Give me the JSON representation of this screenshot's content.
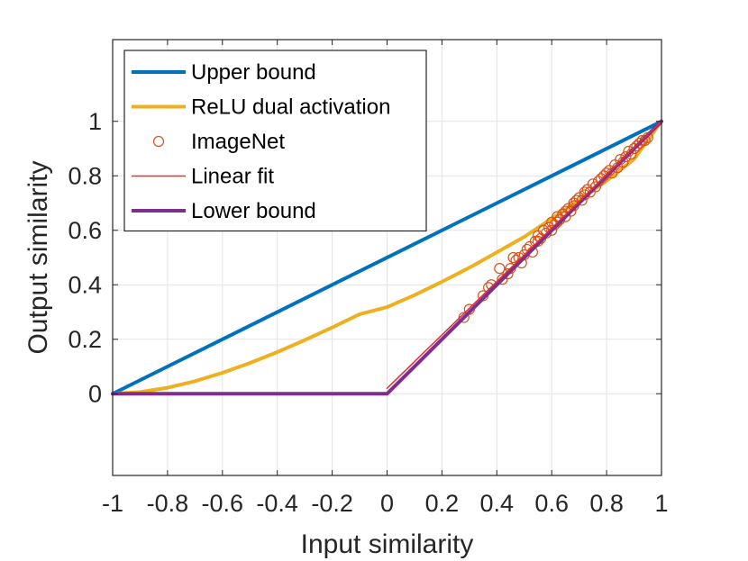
{
  "chart_data": {
    "type": "line",
    "title": "",
    "xlabel": "Input similarity",
    "ylabel": "Output similarity",
    "xlim": [
      -1,
      1
    ],
    "ylim": [
      -0.3,
      1.3
    ],
    "x_ticks": [
      -1,
      -0.8,
      -0.6,
      -0.4,
      -0.2,
      0,
      0.2,
      0.4,
      0.6,
      0.8,
      1
    ],
    "x_tick_labels": [
      "-1",
      "-0.8",
      "-0.6",
      "-0.4",
      "-0.2",
      "0",
      "0.2",
      "0.4",
      "0.6",
      "0.8",
      "1"
    ],
    "y_ticks": [
      0,
      0.2,
      0.4,
      0.6,
      0.8,
      1
    ],
    "y_tick_labels": [
      "0",
      "0.2",
      "0.4",
      "0.6",
      "0.8",
      "1"
    ],
    "grid": true,
    "legend_position": "top-left",
    "series": [
      {
        "name": "Upper bound",
        "kind": "line",
        "color": "#0072BD",
        "x": [
          -1,
          1
        ],
        "y": [
          0,
          1
        ]
      },
      {
        "name": "ReLU dual activation",
        "kind": "line",
        "color": "#EDB120",
        "x": [
          -1,
          -0.9,
          -0.8,
          -0.7,
          -0.6,
          -0.5,
          -0.4,
          -0.3,
          -0.2,
          -0.1,
          0,
          0.1,
          0.2,
          0.3,
          0.4,
          0.5,
          0.6,
          0.7,
          0.8,
          0.9,
          1
        ],
        "y": [
          0,
          0.006,
          0.022,
          0.046,
          0.077,
          0.113,
          0.153,
          0.197,
          0.243,
          0.292,
          0.318,
          0.362,
          0.411,
          0.463,
          0.519,
          0.576,
          0.643,
          0.71,
          0.782,
          0.861,
          1
        ]
      },
      {
        "name": "ImageNet",
        "kind": "scatter",
        "color": "#D95319",
        "x": [
          0.28,
          0.3,
          0.35,
          0.37,
          0.38,
          0.41,
          0.42,
          0.44,
          0.45,
          0.46,
          0.47,
          0.48,
          0.49,
          0.5,
          0.51,
          0.52,
          0.53,
          0.54,
          0.55,
          0.55,
          0.56,
          0.57,
          0.58,
          0.59,
          0.6,
          0.6,
          0.61,
          0.62,
          0.62,
          0.63,
          0.64,
          0.65,
          0.65,
          0.66,
          0.67,
          0.68,
          0.68,
          0.69,
          0.7,
          0.71,
          0.72,
          0.72,
          0.73,
          0.74,
          0.75,
          0.76,
          0.77,
          0.78,
          0.79,
          0.8,
          0.81,
          0.82,
          0.83,
          0.84,
          0.85,
          0.86,
          0.87,
          0.88,
          0.89,
          0.9,
          0.91,
          0.92,
          0.93,
          0.94,
          0.95
        ],
        "y": [
          0.28,
          0.31,
          0.36,
          0.39,
          0.4,
          0.46,
          0.42,
          0.44,
          0.46,
          0.5,
          0.49,
          0.5,
          0.48,
          0.51,
          0.53,
          0.54,
          0.52,
          0.56,
          0.56,
          0.58,
          0.57,
          0.6,
          0.59,
          0.61,
          0.6,
          0.63,
          0.62,
          0.65,
          0.63,
          0.64,
          0.66,
          0.67,
          0.65,
          0.68,
          0.67,
          0.7,
          0.69,
          0.71,
          0.72,
          0.71,
          0.73,
          0.74,
          0.75,
          0.74,
          0.77,
          0.76,
          0.78,
          0.79,
          0.8,
          0.81,
          0.82,
          0.81,
          0.84,
          0.83,
          0.86,
          0.85,
          0.87,
          0.89,
          0.88,
          0.9,
          0.91,
          0.92,
          0.93,
          0.93,
          0.94
        ]
      },
      {
        "name": "Linear fit",
        "kind": "line",
        "color": "#E0302F",
        "x": [
          0,
          1
        ],
        "y": [
          0.02,
          1
        ]
      },
      {
        "name": "Lower bound",
        "kind": "line",
        "color": "#7E2F8E",
        "x": [
          -1,
          0,
          1
        ],
        "y": [
          0,
          0,
          1
        ]
      }
    ]
  }
}
